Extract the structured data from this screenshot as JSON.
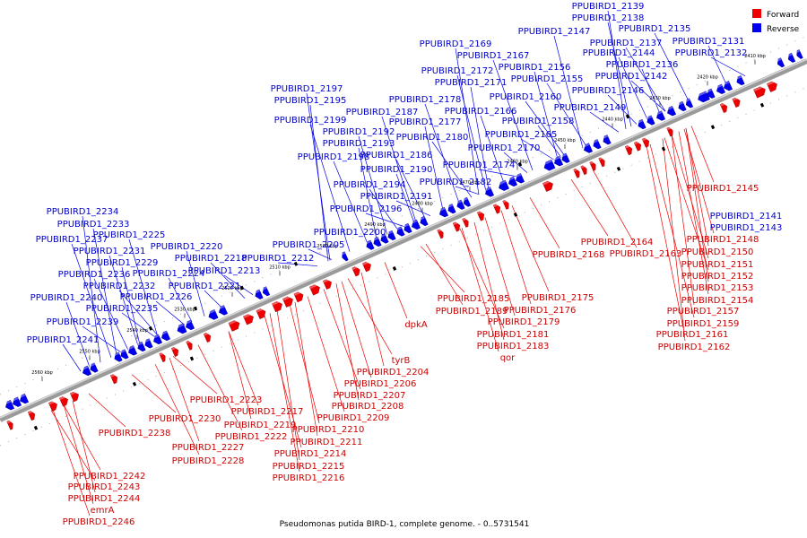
{
  "caption": "Pseudomonas putida BIRD-1, complete genome. - 0..5731541",
  "legend": [
    {
      "name": "Forward",
      "color": "#ee0000"
    },
    {
      "name": "Reverse",
      "color": "#0000ee"
    }
  ],
  "colors": {
    "forward": "#ee0000",
    "reverse": "#0000ee",
    "axis": "#888888",
    "label_forward": "#cc0000",
    "label_reverse": "#0000cc"
  },
  "ticks": [
    "2410 kbp",
    "2420 kbp",
    "2430 kbp",
    "2440 kbp",
    "2450 kbp",
    "2460 kbp",
    "2470 kbp",
    "2480 kbp",
    "2490 kbp",
    "2500 kbp",
    "2510 kbp",
    "2520 kbp",
    "2530 kbp",
    "2540 kbp",
    "2550 kbp",
    "2560 kbp"
  ],
  "reverse_labels": [
    "PPUBIRD1_2139",
    "PPUBIRD1_2138",
    "PPUBIRD1_2147",
    "PPUBIRD1_2135",
    "PPUBIRD1_2137",
    "PPUBIRD1_2131",
    "PPUBIRD1_2169",
    "PPUBIRD1_2144",
    "PPUBIRD1_2132",
    "PPUBIRD1_2167",
    "PPUBIRD1_2136",
    "PPUBIRD1_2156",
    "PPUBIRD1_2172",
    "PPUBIRD1_2142",
    "PPUBIRD1_2155",
    "PPUBIRD1_2171",
    "PPUBIRD1_2197",
    "PPUBIRD1_2146",
    "PPUBIRD1_2178",
    "PPUBIRD1_2160",
    "PPUBIRD1_2195",
    "PPUBIRD1_2166",
    "PPUBIRD1_2149",
    "PPUBIRD1_2187",
    "PPUBIRD1_2199",
    "PPUBIRD1_2177",
    "PPUBIRD1_2158",
    "PPUBIRD1_2192",
    "PPUBIRD1_2165",
    "PPUBIRD1_2180",
    "PPUBIRD1_2193",
    "PPUBIRD1_2170",
    "PPUBIRD1_2186",
    "PPUBIRD1_2198",
    "PPUBIRD1_2174",
    "PPUBIRD1_2190",
    "PPUBIRD1_2182",
    "PPUBIRD1_2194",
    "PPUBIRD1_2191",
    "PPUBIRD1_2196",
    "PPUBIRD1_2234",
    "PPUBIRD1_2233",
    "PPUBIRD1_2225",
    "PPUBIRD1_2200",
    "PPUBIRD1_2237",
    "PPUBIRD1_2220",
    "PPUBIRD1_2205",
    "PPUBIRD1_2231",
    "PPUBIRD1_2218",
    "PPUBIRD1_2212",
    "PPUBIRD1_2229",
    "PPUBIRD1_2224",
    "PPUBIRD1_2213",
    "PPUBIRD1_2236",
    "PPUBIRD1_2232",
    "PPUBIRD1_2221",
    "PPUBIRD1_2240",
    "PPUBIRD1_2226",
    "PPUBIRD1_2235",
    "PPUBIRD1_2239",
    "PPUBIRD1_2241",
    "PPUBIRD1_2141",
    "PPUBIRD1_2143"
  ],
  "forward_labels": [
    "PPUBIRD1_2145",
    "PPUBIRD1_2148",
    "PPUBIRD1_2164",
    "PPUBIRD1_2163",
    "PPUBIRD1_2150",
    "PPUBIRD1_2168",
    "PPUBIRD1_2151",
    "PPUBIRD1_2152",
    "PPUBIRD1_2153",
    "PPUBIRD1_2154",
    "PPUBIRD1_2175",
    "PPUBIRD1_2185",
    "PPUBIRD1_2157",
    "PPUBIRD1_2176",
    "PPUBIRD1_2189",
    "PPUBIRD1_2159",
    "dpkA",
    "PPUBIRD1_2179",
    "PPUBIRD1_2161",
    "PPUBIRD1_2181",
    "PPUBIRD1_2162",
    "PPUBIRD1_2183",
    "qor",
    "tyrB",
    "PPUBIRD1_2204",
    "PPUBIRD1_2206",
    "PPUBIRD1_2207",
    "PPUBIRD1_2223",
    "PPUBIRD1_2208",
    "PPUBIRD1_2217",
    "PPUBIRD1_2209",
    "PPUBIRD1_2230",
    "PPUBIRD1_2219",
    "PPUBIRD1_2210",
    "PPUBIRD1_2238",
    "PPUBIRD1_2222",
    "PPUBIRD1_2211",
    "PPUBIRD1_2227",
    "PPUBIRD1_2214",
    "PPUBIRD1_2228",
    "PPUBIRD1_2215",
    "PPUBIRD1_2216",
    "PPUBIRD1_2242",
    "PPUBIRD1_2243",
    "PPUBIRD1_2244",
    "emrA",
    "PPUBIRD1_2246"
  ]
}
